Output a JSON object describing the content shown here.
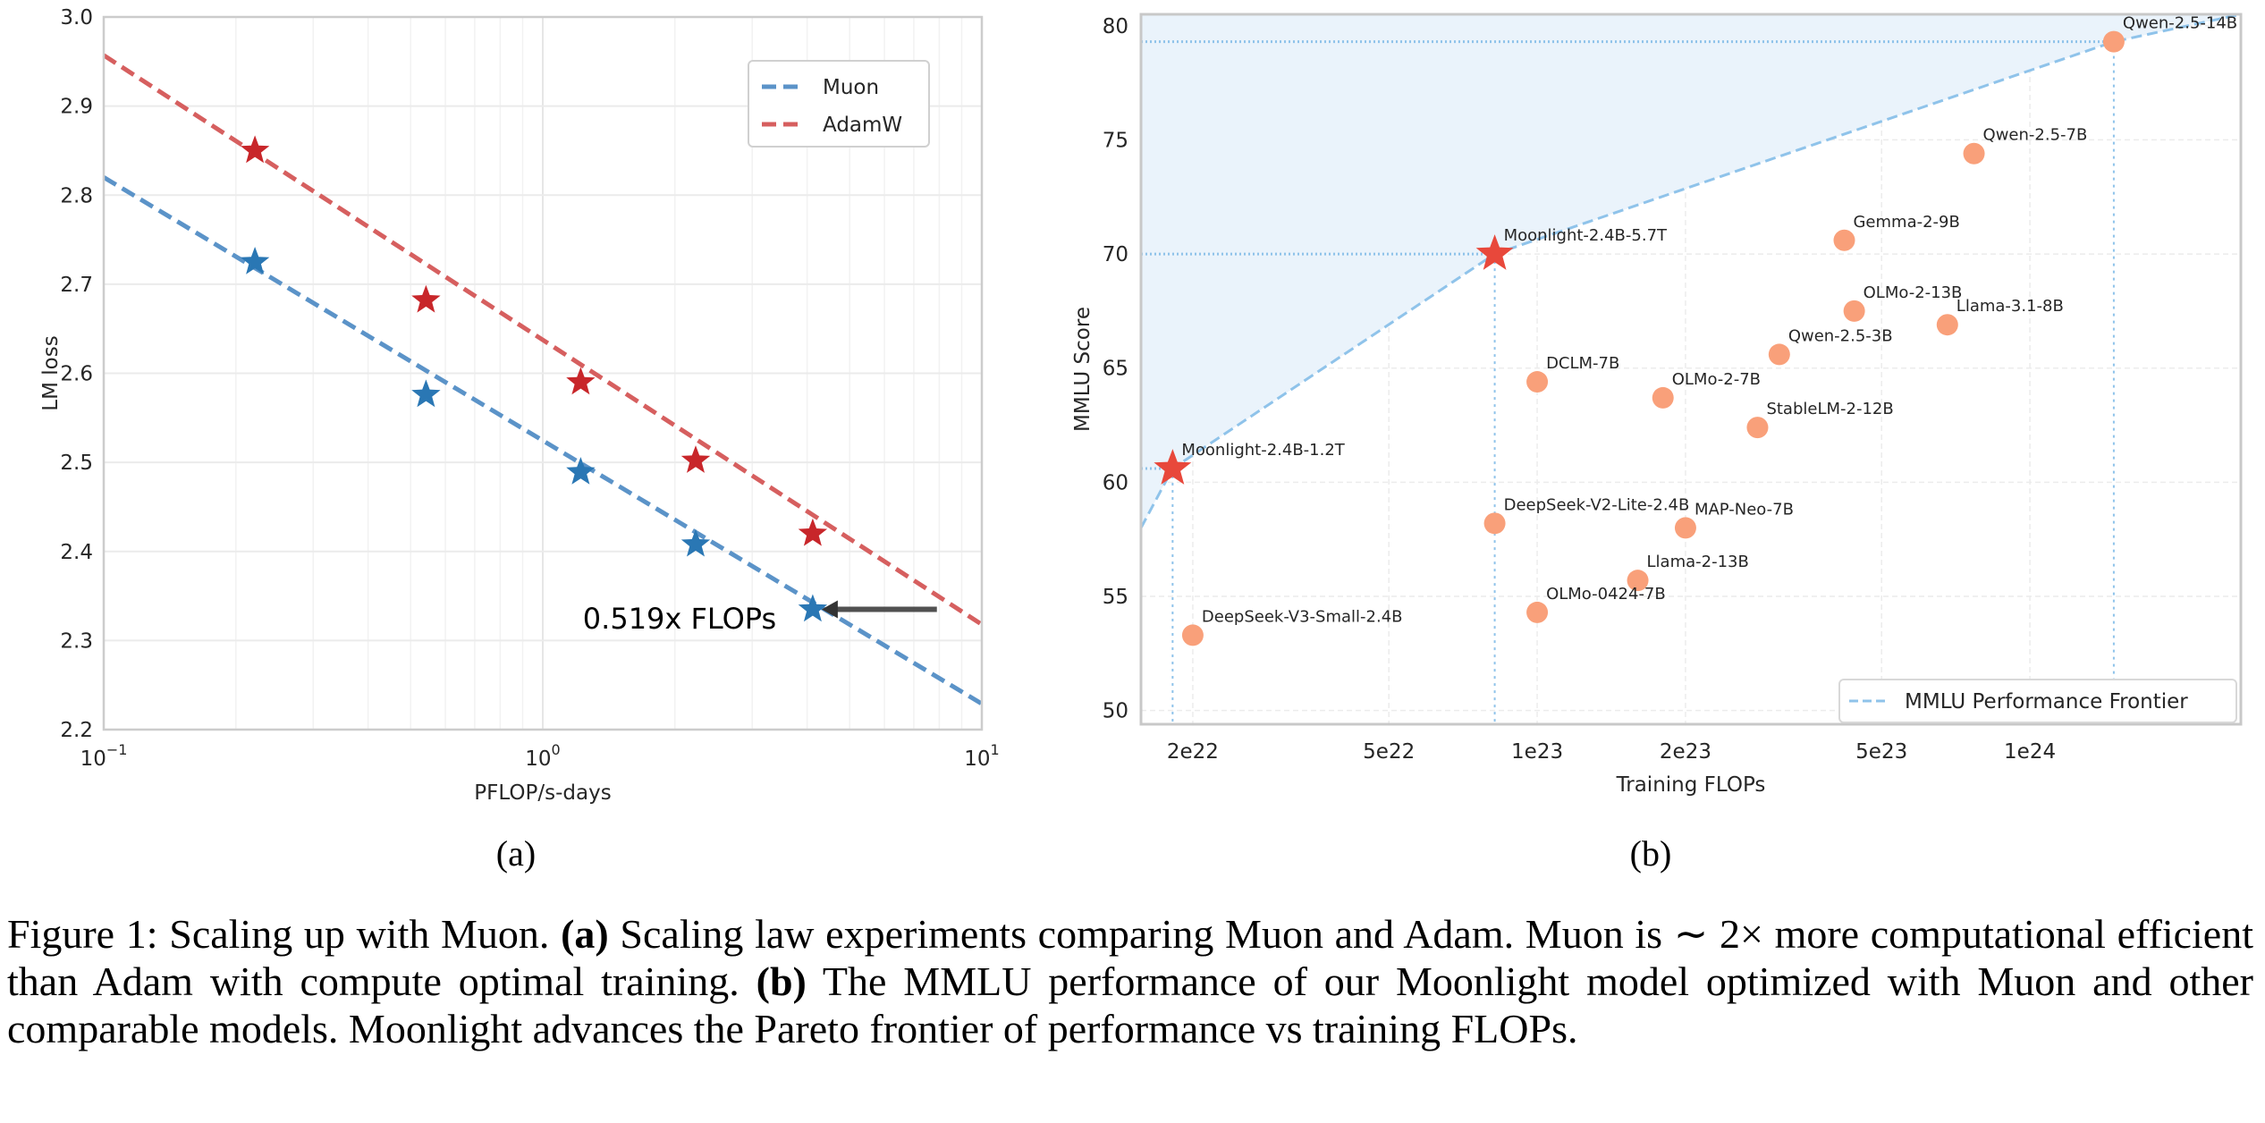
{
  "colors": {
    "muon_line": "#5b93c8",
    "muon_marker": "#2a77b4",
    "adamw_line": "#d65f5f",
    "adamw_marker": "#c8262a",
    "model_point": "#f9a07a",
    "moonlight_marker": "#e8483b",
    "frontier_line": "#8fc3ea",
    "frontier_fill": "#eaf3fb"
  },
  "chart_data": [
    {
      "type": "line",
      "panel_label": "(a)",
      "xlabel": "PFLOP/s-days",
      "ylabel": "LM loss",
      "xscale": "log",
      "xlim": [
        0.1,
        10
      ],
      "ylim": [
        2.2,
        3.0
      ],
      "grid": true,
      "legend_placement": "top-right",
      "xticks": [
        {
          "value": 0.1,
          "base": "10",
          "exp": "−1"
        },
        {
          "value": 1,
          "base": "10",
          "exp": "0"
        },
        {
          "value": 10,
          "base": "10",
          "exp": "1"
        }
      ],
      "yticks": [
        {
          "value": 2.2,
          "label": "2.2"
        },
        {
          "value": 2.3,
          "label": "2.3"
        },
        {
          "value": 2.4,
          "label": "2.4"
        },
        {
          "value": 2.5,
          "label": "2.5"
        },
        {
          "value": 2.6,
          "label": "2.6"
        },
        {
          "value": 2.7,
          "label": "2.7"
        },
        {
          "value": 2.8,
          "label": "2.8"
        },
        {
          "value": 2.9,
          "label": "2.9"
        },
        {
          "value": 3.0,
          "label": "3.0"
        }
      ],
      "series": [
        {
          "name": "Muon",
          "x": [
            0.221,
            0.542,
            1.22,
            2.23,
            4.12
          ],
          "y": [
            2.725,
            2.576,
            2.489,
            2.408,
            2.335
          ],
          "fit": {
            "x": [
              0.1,
              10
            ],
            "y": [
              2.82,
              2.229
            ]
          }
        },
        {
          "name": "AdamW",
          "x": [
            0.221,
            0.542,
            1.22,
            2.23,
            4.12
          ],
          "y": [
            2.85,
            2.682,
            2.59,
            2.502,
            2.42
          ],
          "fit": {
            "x": [
              0.1,
              10
            ],
            "y": [
              2.957,
              2.318
            ]
          }
        }
      ],
      "annotation": {
        "text": "0.519x FLOPs",
        "arrow_from": [
          7.9,
          2.335
        ],
        "arrow_to": [
          4.12,
          2.335
        ]
      }
    },
    {
      "type": "scatter",
      "panel_label": "(b)",
      "xlabel": "Training FLOPs",
      "ylabel": "MMLU Score",
      "xscale": "log",
      "xlim": [
        1.57e+22,
        2.68e+24
      ],
      "ylim": [
        49.4,
        80.5
      ],
      "grid": true,
      "legend_placement": "bottom-right",
      "legend": "MMLU Performance Frontier",
      "xticks": [
        {
          "value": 2e+22,
          "label": "2e22"
        },
        {
          "value": 5e+22,
          "label": "5e22"
        },
        {
          "value": 1e+23,
          "label": "1e23"
        },
        {
          "value": 2e+23,
          "label": "2e23"
        },
        {
          "value": 5e+23,
          "label": "5e23"
        },
        {
          "value": 1e+24,
          "label": "1e24"
        }
      ],
      "yticks": [
        {
          "value": 50,
          "label": "50"
        },
        {
          "value": 55,
          "label": "55"
        },
        {
          "value": 60,
          "label": "60"
        },
        {
          "value": 65,
          "label": "65"
        },
        {
          "value": 70,
          "label": "70"
        },
        {
          "value": 75,
          "label": "75"
        },
        {
          "value": 80,
          "label": "80"
        }
      ],
      "points": [
        {
          "name": "Moonlight-2.4B-1.2T",
          "x": 1.82e+22,
          "y": 60.6,
          "moonlight": true,
          "frontier": true
        },
        {
          "name": "Moonlight-2.4B-5.7T",
          "x": 8.2e+22,
          "y": 70.0,
          "moonlight": true,
          "frontier": true
        },
        {
          "name": "Qwen-2.5-14B",
          "x": 1.48e+24,
          "y": 79.3,
          "frontier": true
        },
        {
          "name": "Qwen-2.5-7B",
          "x": 7.7e+23,
          "y": 74.4
        },
        {
          "name": "Gemma-2-9B",
          "x": 4.2e+23,
          "y": 70.6
        },
        {
          "name": "OLMo-2-13B",
          "x": 4.4e+23,
          "y": 67.5
        },
        {
          "name": "Llama-3.1-8B",
          "x": 6.8e+23,
          "y": 66.9
        },
        {
          "name": "Qwen-2.5-3B",
          "x": 3.1e+23,
          "y": 65.6
        },
        {
          "name": "DCLM-7B",
          "x": 1e+23,
          "y": 64.4
        },
        {
          "name": "OLMo-2-7B",
          "x": 1.8e+23,
          "y": 63.7
        },
        {
          "name": "StableLM-2-12B",
          "x": 2.8e+23,
          "y": 62.4
        },
        {
          "name": "DeepSeek-V2-Lite-2.4B",
          "x": 8.2e+22,
          "y": 58.2
        },
        {
          "name": "MAP-Neo-7B",
          "x": 2e+23,
          "y": 58.0
        },
        {
          "name": "Llama-2-13B",
          "x": 1.6e+23,
          "y": 55.7
        },
        {
          "name": "OLMo-0424-7B",
          "x": 1e+23,
          "y": 54.3
        },
        {
          "name": "DeepSeek-V3-Small-2.4B",
          "x": 2e+22,
          "y": 53.3
        }
      ],
      "frontier": {
        "x": [
          1.57e+22,
          1.82e+22,
          8.2e+22,
          1.48e+24,
          2.68e+24
        ],
        "y": [
          58.0,
          60.6,
          70.0,
          79.3,
          80.5
        ]
      }
    }
  ],
  "caption": [
    {
      "text": "Figure 1: Scaling up with Muon. ",
      "bold": false
    },
    {
      "text": "(a)",
      "bold": true
    },
    {
      "text": " Scaling law experiments comparing Muon and Adam. Muon is ∼ 2× more computational efficient than Adam with compute optimal training. ",
      "bold": false
    },
    {
      "text": "(b)",
      "bold": true
    },
    {
      "text": " The MMLU performance of our Moonlight model optimized with Muon and other comparable models. Moonlight advances the Pareto frontier of performance vs training FLOPs.",
      "bold": false
    }
  ]
}
